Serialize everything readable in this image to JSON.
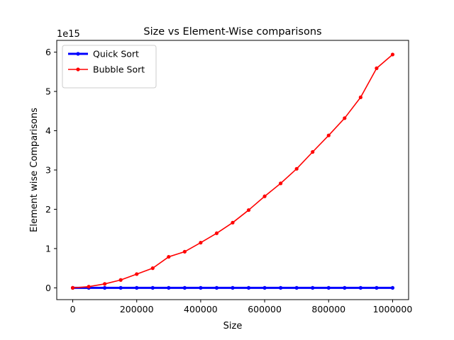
{
  "chart_data": {
    "type": "line",
    "title": "Size vs Element-Wise comparisons",
    "xlabel": "Size",
    "ylabel": "Element wise Comparisons",
    "y_offset_label": "1e15",
    "xlim": [
      -50000,
      1050000
    ],
    "ylim": [
      -0.3,
      6.3
    ],
    "y_scale_factor": 1000000000000000.0,
    "x_ticks": [
      0,
      200000,
      400000,
      600000,
      800000,
      1000000
    ],
    "x_tick_labels": [
      "0",
      "200000",
      "400000",
      "600000",
      "800000",
      "1000000"
    ],
    "y_ticks": [
      0,
      1,
      2,
      3,
      4,
      5,
      6
    ],
    "y_tick_labels": [
      "0",
      "1",
      "2",
      "3",
      "4",
      "5",
      "6"
    ],
    "grid": false,
    "legend_position": "upper-left",
    "x": [
      0,
      50000,
      100000,
      150000,
      200000,
      250000,
      300000,
      350000,
      400000,
      450000,
      500000,
      550000,
      600000,
      650000,
      700000,
      750000,
      800000,
      850000,
      900000,
      950000,
      1000000
    ],
    "series": [
      {
        "name": "Quick Sort",
        "color": "#0000ff",
        "values": [
          0,
          0,
          0,
          0,
          0,
          0,
          0,
          0,
          0,
          0,
          0,
          0,
          0,
          0,
          0,
          0,
          0,
          0,
          0,
          0,
          0
        ]
      },
      {
        "name": "Bubble Sort",
        "color": "#ff0000",
        "values": [
          0,
          0.03,
          0.1,
          0.2,
          0.35,
          0.5,
          0.79,
          0.92,
          1.15,
          1.39,
          1.66,
          1.98,
          2.33,
          2.66,
          3.03,
          3.46,
          3.88,
          4.32,
          4.85,
          5.59,
          5.94
        ]
      }
    ]
  }
}
